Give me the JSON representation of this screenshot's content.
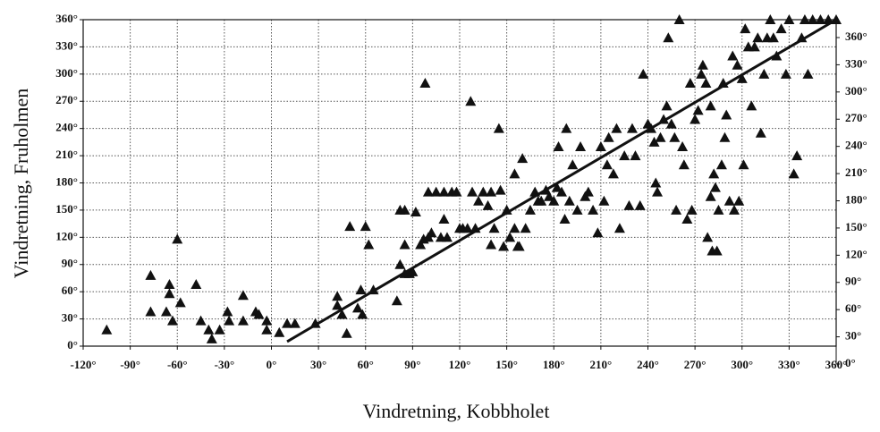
{
  "chart_data": {
    "type": "scatter",
    "xlabel": "Vindretning, Kobbholet",
    "ylabel": "Vindretning, Fruholmen",
    "xlim": [
      -120,
      360
    ],
    "ylim": [
      0,
      360
    ],
    "y2lim": [
      0,
      360
    ],
    "grid": true,
    "xticks": [
      {
        "value": -120,
        "label": "-120°"
      },
      {
        "value": -90,
        "label": "-90°"
      },
      {
        "value": -60,
        "label": "-60°"
      },
      {
        "value": -30,
        "label": "-30°"
      },
      {
        "value": 0,
        "label": "0°"
      },
      {
        "value": 30,
        "label": "30°"
      },
      {
        "value": 60,
        "label": "60°"
      },
      {
        "value": 90,
        "label": "90°"
      },
      {
        "value": 120,
        "label": "120°"
      },
      {
        "value": 150,
        "label": "150°"
      },
      {
        "value": 180,
        "label": "180°"
      },
      {
        "value": 210,
        "label": "210°"
      },
      {
        "value": 240,
        "label": "240°"
      },
      {
        "value": 270,
        "label": "270°"
      },
      {
        "value": 300,
        "label": "300°"
      },
      {
        "value": 330,
        "label": "330°"
      },
      {
        "value": 360,
        "label": "360°"
      }
    ],
    "yticks": [
      {
        "value": 0,
        "label": "0°"
      },
      {
        "value": 30,
        "label": "30°"
      },
      {
        "value": 60,
        "label": "60°"
      },
      {
        "value": 90,
        "label": "90°"
      },
      {
        "value": 120,
        "label": "120°"
      },
      {
        "value": 150,
        "label": "150°"
      },
      {
        "value": 180,
        "label": "180°"
      },
      {
        "value": 210,
        "label": "210°"
      },
      {
        "value": 240,
        "label": "240°"
      },
      {
        "value": 270,
        "label": "270°"
      },
      {
        "value": 300,
        "label": "300°"
      },
      {
        "value": 330,
        "label": "330°"
      },
      {
        "value": 360,
        "label": "360°"
      }
    ],
    "y2ticks": [
      {
        "value": 0,
        "label": "0°"
      },
      {
        "value": 30,
        "label": "30°"
      },
      {
        "value": 60,
        "label": "60°"
      },
      {
        "value": 90,
        "label": "90°"
      },
      {
        "value": 120,
        "label": "120°"
      },
      {
        "value": 150,
        "label": "150°"
      },
      {
        "value": 180,
        "label": "180°"
      },
      {
        "value": 210,
        "label": "210°"
      },
      {
        "value": 240,
        "label": "240°"
      },
      {
        "value": 270,
        "label": "270°"
      },
      {
        "value": 300,
        "label": "300°"
      },
      {
        "value": 330,
        "label": "330°"
      },
      {
        "value": 360,
        "label": "360°"
      }
    ],
    "series": [
      {
        "color": "#111111",
        "x": [
          -105,
          -77,
          -77,
          -65,
          -65,
          -67,
          -63,
          -60,
          -58,
          -48,
          -45,
          -40,
          -38,
          -33,
          -28,
          -27,
          -18,
          -18,
          -10,
          -8,
          -3,
          -3,
          5,
          10,
          15,
          28,
          42,
          42,
          45,
          48,
          50,
          55,
          57,
          58,
          60,
          62,
          65,
          80,
          82,
          82,
          85,
          85,
          85,
          88,
          90,
          92,
          95,
          97,
          98,
          100,
          100,
          102,
          105,
          108,
          110,
          110,
          112,
          115,
          118,
          120,
          122,
          125,
          127,
          128,
          130,
          132,
          135,
          138,
          140,
          140,
          142,
          145,
          146,
          148,
          150,
          152,
          155,
          155,
          157,
          158,
          160,
          162,
          165,
          168,
          170,
          172,
          175,
          177,
          180,
          182,
          183,
          185,
          187,
          188,
          190,
          192,
          195,
          197,
          200,
          202,
          205,
          208,
          210,
          212,
          214,
          215,
          218,
          220,
          222,
          225,
          228,
          230,
          232,
          235,
          237,
          240,
          242,
          244,
          245,
          246,
          248,
          250,
          252,
          253,
          255,
          257,
          258,
          260,
          262,
          263,
          265,
          267,
          268,
          270,
          272,
          274,
          275,
          277,
          278,
          280,
          280,
          281,
          282,
          283,
          284,
          285,
          287,
          288,
          289,
          290,
          292,
          294,
          295,
          297,
          298,
          300,
          301,
          302,
          304,
          306,
          308,
          310,
          312,
          314,
          316,
          318,
          320,
          322,
          325,
          328,
          330,
          333,
          335,
          338,
          340,
          342,
          345,
          350,
          355,
          360
        ],
        "y": [
          18,
          78,
          38,
          68,
          58,
          38,
          28,
          118,
          48,
          68,
          28,
          18,
          8,
          18,
          38,
          28,
          56,
          28,
          38,
          35,
          28,
          18,
          15,
          25,
          25,
          25,
          55,
          45,
          35,
          14,
          132,
          42,
          62,
          35,
          132,
          112,
          62,
          50,
          90,
          150,
          150,
          112,
          80,
          80,
          82,
          148,
          112,
          118,
          290,
          170,
          120,
          125,
          170,
          120,
          170,
          140,
          120,
          170,
          170,
          130,
          130,
          130,
          270,
          170,
          130,
          160,
          170,
          155,
          170,
          112,
          130,
          240,
          172,
          110,
          150,
          120,
          190,
          130,
          110,
          110,
          207,
          130,
          150,
          170,
          160,
          160,
          172,
          165,
          160,
          175,
          220,
          170,
          140,
          240,
          160,
          200,
          150,
          220,
          165,
          170,
          150,
          125,
          220,
          160,
          200,
          230,
          190,
          240,
          130,
          210,
          155,
          240,
          210,
          155,
          300,
          245,
          240,
          225,
          180,
          170,
          230,
          250,
          265,
          340,
          245,
          230,
          150,
          360,
          220,
          200,
          140,
          290,
          150,
          250,
          260,
          300,
          310,
          290,
          120,
          165,
          265,
          105,
          190,
          175,
          105,
          150,
          200,
          290,
          230,
          255,
          160,
          320,
          150,
          310,
          160,
          295,
          200,
          350,
          330,
          265,
          330,
          340,
          235,
          300,
          340,
          360,
          340,
          320,
          350,
          300,
          360,
          190,
          210,
          340,
          360,
          300,
          360,
          360,
          360,
          360
        ]
      }
    ],
    "lines": [
      {
        "color": "#111111",
        "x": [
          10,
          360
        ],
        "y": [
          5,
          360
        ]
      }
    ]
  }
}
